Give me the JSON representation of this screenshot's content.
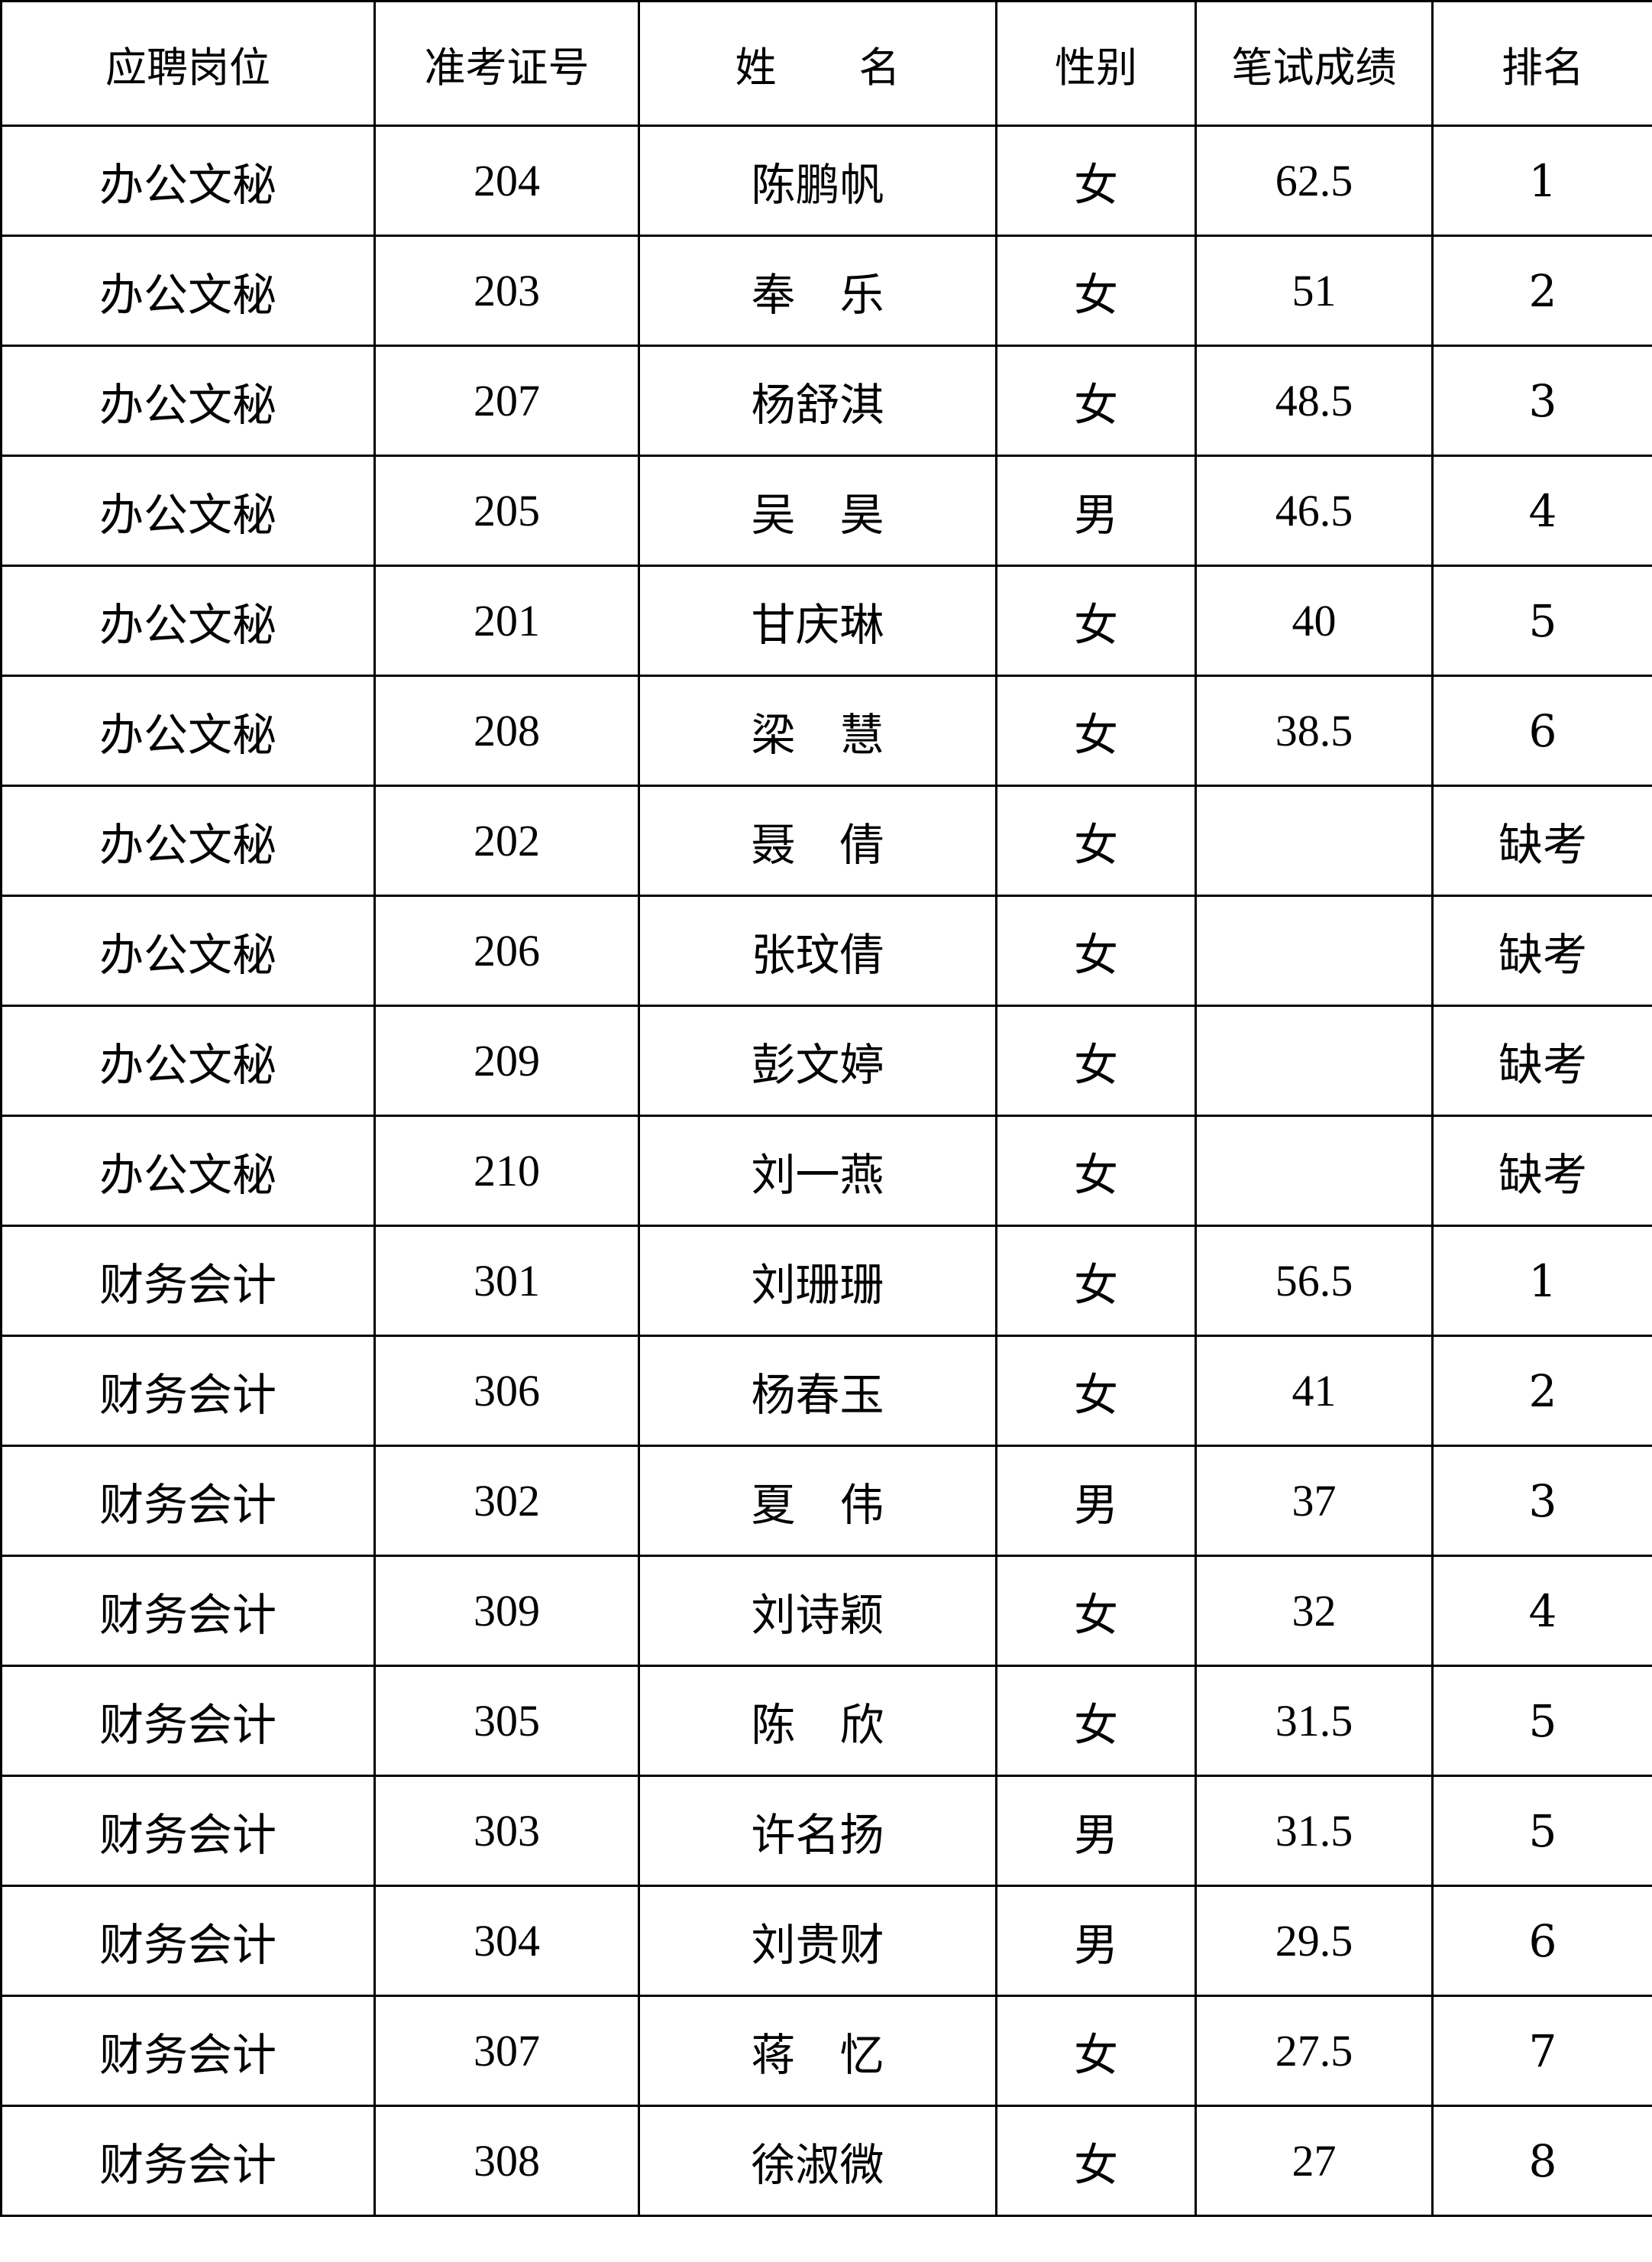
{
  "headers": [
    "应聘岗位",
    "准考证号",
    "姓　　名",
    "性别",
    "笔试成绩",
    "排名"
  ],
  "rows": [
    {
      "position": "办公文秘",
      "id": "204",
      "name": "陈鹏帆",
      "gender": "女",
      "score": "62.5",
      "rank": "1"
    },
    {
      "position": "办公文秘",
      "id": "203",
      "name": "奉　乐",
      "gender": "女",
      "score": "51",
      "rank": "2"
    },
    {
      "position": "办公文秘",
      "id": "207",
      "name": "杨舒淇",
      "gender": "女",
      "score": "48.5",
      "rank": "3"
    },
    {
      "position": "办公文秘",
      "id": "205",
      "name": "吴　昊",
      "gender": "男",
      "score": "46.5",
      "rank": "4"
    },
    {
      "position": "办公文秘",
      "id": "201",
      "name": "甘庆琳",
      "gender": "女",
      "score": "40",
      "rank": "5"
    },
    {
      "position": "办公文秘",
      "id": "208",
      "name": "梁　慧",
      "gender": "女",
      "score": "38.5",
      "rank": "6"
    },
    {
      "position": "办公文秘",
      "id": "202",
      "name": "聂　倩",
      "gender": "女",
      "score": "",
      "rank": "缺考"
    },
    {
      "position": "办公文秘",
      "id": "206",
      "name": "张玟倩",
      "gender": "女",
      "score": "",
      "rank": "缺考"
    },
    {
      "position": "办公文秘",
      "id": "209",
      "name": "彭文婷",
      "gender": "女",
      "score": "",
      "rank": "缺考"
    },
    {
      "position": "办公文秘",
      "id": "210",
      "name": "刘一燕",
      "gender": "女",
      "score": "",
      "rank": "缺考"
    },
    {
      "position": "财务会计",
      "id": "301",
      "name": "刘珊珊",
      "gender": "女",
      "score": "56.5",
      "rank": "1"
    },
    {
      "position": "财务会计",
      "id": "306",
      "name": "杨春玉",
      "gender": "女",
      "score": "41",
      "rank": "2"
    },
    {
      "position": "财务会计",
      "id": "302",
      "name": "夏　伟",
      "gender": "男",
      "score": "37",
      "rank": "3"
    },
    {
      "position": "财务会计",
      "id": "309",
      "name": "刘诗颖",
      "gender": "女",
      "score": "32",
      "rank": "4"
    },
    {
      "position": "财务会计",
      "id": "305",
      "name": "陈　欣",
      "gender": "女",
      "score": "31.5",
      "rank": "5"
    },
    {
      "position": "财务会计",
      "id": "303",
      "name": "许名扬",
      "gender": "男",
      "score": "31.5",
      "rank": "5"
    },
    {
      "position": "财务会计",
      "id": "304",
      "name": "刘贵财",
      "gender": "男",
      "score": "29.5",
      "rank": "6"
    },
    {
      "position": "财务会计",
      "id": "307",
      "name": "蒋　忆",
      "gender": "女",
      "score": "27.5",
      "rank": "7"
    },
    {
      "position": "财务会计",
      "id": "308",
      "name": "徐淑微",
      "gender": "女",
      "score": "27",
      "rank": "8"
    }
  ]
}
